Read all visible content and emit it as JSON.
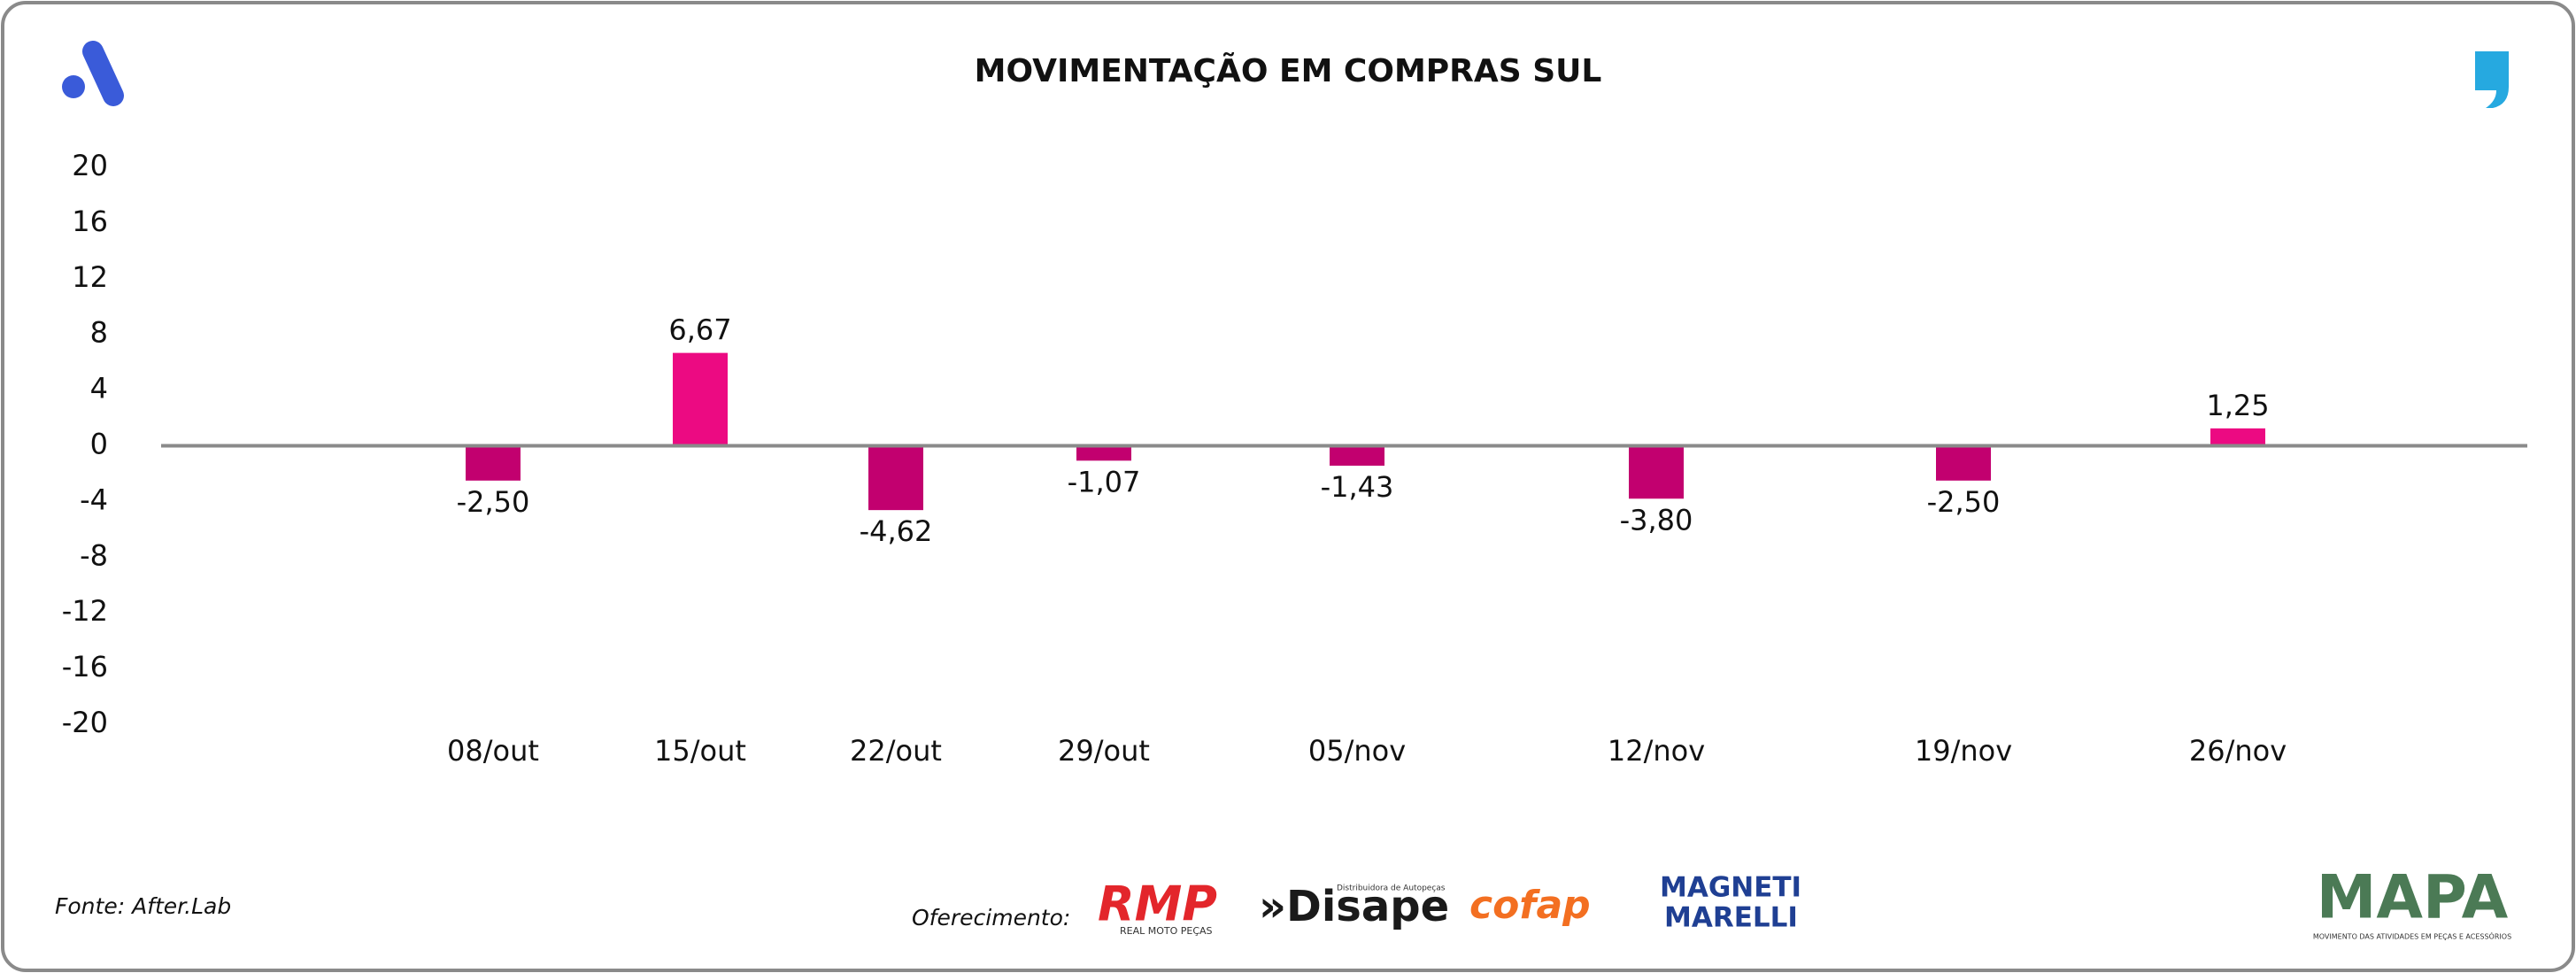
{
  "chart_data": {
    "type": "bar",
    "title": "MOVIMENTAÇÃO EM COMPRAS SUL",
    "categories": [
      "08/out",
      "15/out",
      "22/out",
      "29/out",
      "05/nov",
      "12/nov",
      "19/nov",
      "26/nov"
    ],
    "values": [
      -2.5,
      6.67,
      -4.62,
      -1.07,
      -1.43,
      -3.8,
      -2.5,
      1.25
    ],
    "value_labels": [
      "-2,50",
      "6,67",
      "-4,62",
      "-1,07",
      "-1,43",
      "-3,80",
      "-2,50",
      "1,25"
    ],
    "colors": [
      "#c2006f",
      "#ec0a82",
      "#c2006f",
      "#c2006f",
      "#c2006f",
      "#c2006f",
      "#c2006f",
      "#ec0a82"
    ],
    "ylim": [
      -20,
      20
    ],
    "yticks": [
      20,
      16,
      12,
      8,
      4,
      0,
      -4,
      -8,
      -12,
      -16,
      -20
    ],
    "grid": false,
    "source": "Fonte: After.Lab",
    "sponsor_label": "Oferecimento:"
  },
  "logos": {
    "rmp": "RMP",
    "rmp_sub": "REAL MOTO PEÇAS",
    "disape": "»Disape",
    "disape_sub": "Distribuidora de Autopeças",
    "cofap": "cofap",
    "magneti": "MAGNETI",
    "marelli": "MARELLI",
    "mapa": "MAPA",
    "mapa_sub": "MOVIMENTO DAS ATIVIDADES EM PEÇAS E ACESSÓRIOS"
  }
}
